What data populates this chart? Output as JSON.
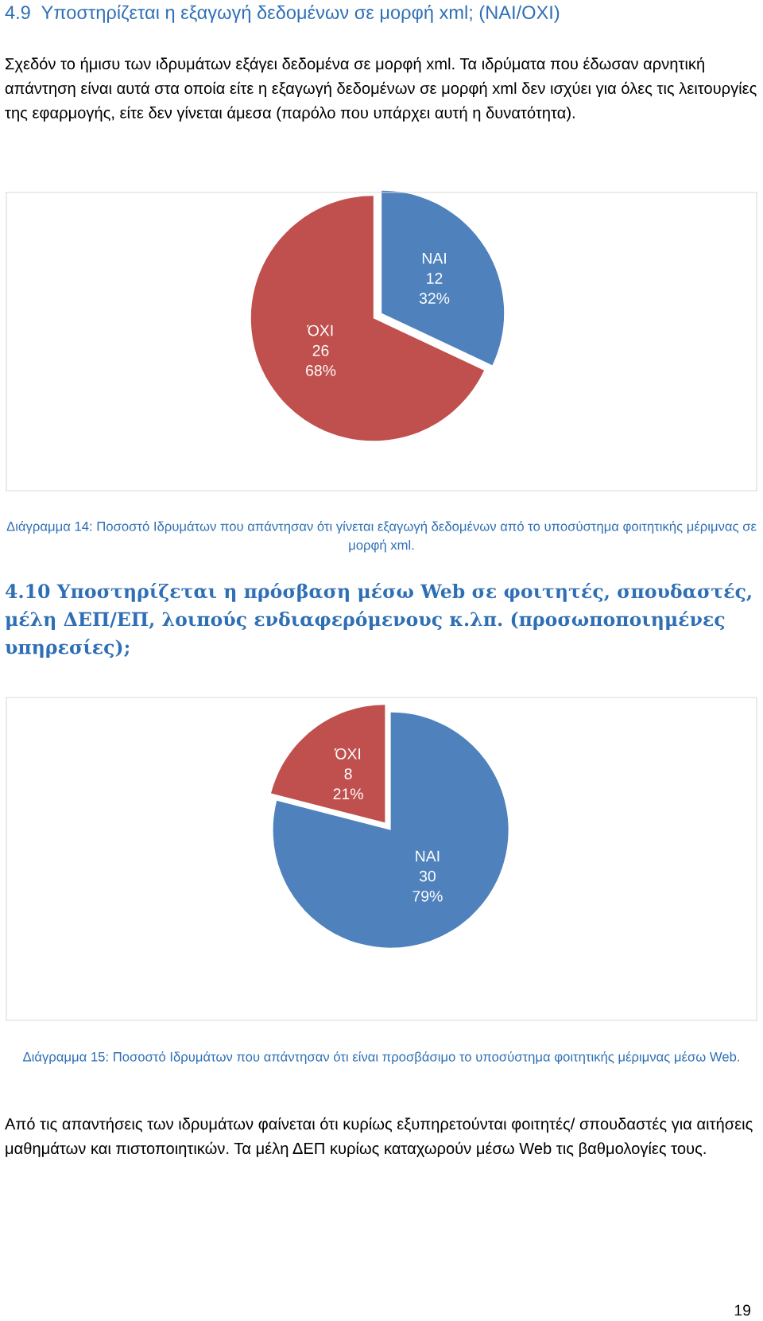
{
  "chart_data": [
    {
      "type": "pie",
      "title": "4.9  Υποστηρίζεται η εξαγωγή δεδομένων σε μορφή xml; (ΝΑΙ/ΟΧΙ)",
      "subtitle": "Σχεδόν το ήμισυ των ιδρυμάτων εξάγει δεδομένα σε μορφή xml. Τα ιδρύματα που έδωσαν αρνητική απάντηση είναι αυτά στα οποία είτε η εξαγωγή δεδομένων σε μορφή xml δεν ισχύει για όλες τις λειτουργίες της εφαρμογής, είτε δεν γίνεται άμεσα (παρόλο που υπάρχει αυτή η δυνατότητα).",
      "categories": [
        "ΝΑΙ",
        "ΌΧΙ"
      ],
      "values": [
        32,
        68
      ],
      "value_labels": [
        "12\n32%",
        "26\n68%"
      ],
      "colors": [
        "#4f81bd",
        "#c0504d"
      ],
      "legend": false,
      "annotations": [
        "Διάγραμμα 14: Ποσοστό Ιδρυμάτων που απάντησαν ότι γίνεται εξαγωγή δεδομένων από το υποσύστημα φοιτητικής μέριμνας σε μορφή xml."
      ]
    },
    {
      "type": "pie",
      "title": "4.10 Υποστηρίζεται η πρόσβαση μέσω Web σε φοιτητές, σπουδαστές, μέλη ΔΕΠ/ΕΠ, λοιπούς ενδιαφερόμενους κ.λπ. (προσωποποιημένες υπηρεσίες);",
      "categories": [
        "ΝΑΙ",
        "ΌΧΙ"
      ],
      "values": [
        79,
        21
      ],
      "value_labels": [
        "30\n79%",
        "8\n21%"
      ],
      "colors": [
        "#4f81bd",
        "#c0504d"
      ],
      "legend": false,
      "annotations": [
        "Διάγραμμα 15: Ποσοστό Ιδρυμάτων που απάντησαν ότι είναι προσβάσιμο το υποσύστημα φοιτητικής μέριμνας μέσω Web.",
        "Από τις απαντήσεις των ιδρυμάτων φαίνεται ότι κυρίως εξυπηρετούνται φοιτητές/ σπουδαστές για αιτήσεις μαθημάτων και πιστοποιητικών. Τα μέλη ΔΕΠ κυρίως καταχωρούν μέσω Web τις βαθμολογίες τους.",
        "19"
      ]
    }
  ]
}
